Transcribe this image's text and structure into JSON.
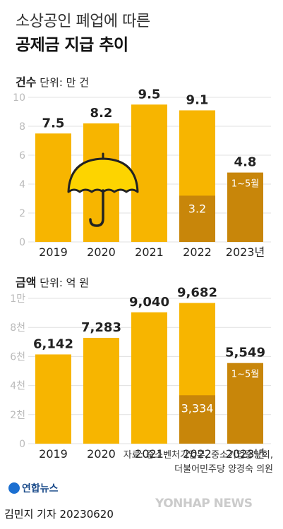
{
  "header": {
    "title_line1": "소상공인 폐업에 따른",
    "title_line2": "공제금 지급 추이"
  },
  "colors": {
    "bar": "#F7B500",
    "bar_dark": "#C8860A",
    "grid": "#E0E0E0",
    "axis_text": "#BBBBBB",
    "umbrella": "#FDD400"
  },
  "chart_data": [
    {
      "type": "bar",
      "unit_label": "건수",
      "unit_note": "단위: 만 건",
      "categories": [
        "2019",
        "2020",
        "2021",
        "2022",
        "2023년"
      ],
      "values": [
        7.5,
        8.2,
        9.5,
        9.1,
        4.8
      ],
      "value_labels": [
        "7.5",
        "8.2",
        "9.5",
        "9.1",
        "4.8"
      ],
      "sub_values": [
        null,
        null,
        null,
        3.2,
        4.8
      ],
      "sub_labels": [
        "",
        "",
        "",
        "3.2",
        ""
      ],
      "note_label": "1~5월",
      "ylim": [
        0,
        10
      ],
      "yticks": [
        0,
        2,
        4,
        6,
        8,
        10
      ],
      "ytick_labels": [
        "0",
        "2",
        "4",
        "6",
        "8",
        "10"
      ],
      "grid": true,
      "umbrella_icon": "umbrella-icon"
    },
    {
      "type": "bar",
      "unit_label": "금액",
      "unit_note": "단위: 억 원",
      "categories": [
        "2019",
        "2020",
        "2021",
        "2022",
        "2023년"
      ],
      "values": [
        6142,
        7283,
        9040,
        9682,
        5549
      ],
      "value_labels": [
        "6,142",
        "7,283",
        "9,040",
        "9,682",
        "5,549"
      ],
      "sub_values": [
        null,
        null,
        null,
        3334,
        5549
      ],
      "sub_labels": [
        "",
        "",
        "",
        "3,334",
        ""
      ],
      "note_label": "1~5월",
      "ylim": [
        0,
        10000
      ],
      "yticks": [
        0,
        2000,
        4000,
        6000,
        8000,
        10000
      ],
      "ytick_labels": [
        "0",
        "2천",
        "4천",
        "6천",
        "8천",
        "1만"
      ],
      "grid": true
    }
  ],
  "footer": {
    "source_line1": "자료: 중소벤처기업부, 중소기업중앙회,",
    "source_line2": "더불어민주당 양경숙 의원",
    "logo_text": "연합뉴스",
    "byline": "김민지 기자  20230620",
    "watermark": "YONHAP NEWS"
  }
}
